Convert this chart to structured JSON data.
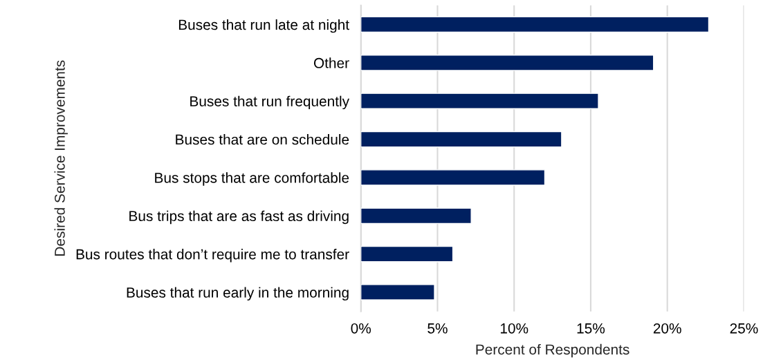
{
  "chart_data": {
    "type": "bar",
    "orientation": "horizontal",
    "categories": [
      "Buses that run late at night",
      "Other",
      "Buses that run frequently",
      "Buses that are on schedule",
      "Bus stops that are comfortable",
      "Bus trips that are as fast as driving",
      "Bus routes that don’t require me to transfer",
      "Buses that run early in the morning"
    ],
    "values": [
      22.7,
      19.1,
      15.5,
      13.1,
      12.0,
      7.2,
      6.0,
      4.8
    ],
    "color": "#002060",
    "xlabel": "Percent of Respondents",
    "ylabel": "Desired Service Improvements",
    "xlim": [
      0,
      25
    ],
    "xticks": [
      {
        "value": 0,
        "label": "0%"
      },
      {
        "value": 5,
        "label": "5%"
      },
      {
        "value": 10,
        "label": "10%"
      },
      {
        "value": 15,
        "label": "15%"
      },
      {
        "value": 20,
        "label": "20%"
      },
      {
        "value": 25,
        "label": "25%"
      }
    ],
    "grid": "x"
  }
}
